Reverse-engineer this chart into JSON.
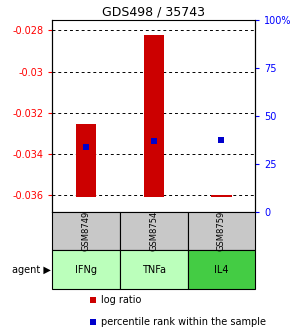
{
  "title": "GDS498 / 35743",
  "samples": [
    "GSM8749",
    "GSM8754",
    "GSM8759"
  ],
  "agents": [
    "IFNg",
    "TNFa",
    "IL4"
  ],
  "log_ratios": [
    -0.03253,
    -0.0282,
    -0.03597
  ],
  "log_ratio_base": -0.03608,
  "percentile_ranks": [
    34.0,
    37.0,
    37.5
  ],
  "ylim_left": [
    -0.0368,
    -0.0275
  ],
  "ylim_right": [
    0,
    100
  ],
  "yticks_left": [
    -0.036,
    -0.034,
    -0.032,
    -0.03,
    -0.028
  ],
  "ytick_labels_left": [
    "-0.036",
    "-0.034",
    "-0.032",
    "-0.03",
    "-0.028"
  ],
  "yticks_right": [
    0,
    25,
    50,
    75,
    100
  ],
  "ytick_labels_right": [
    "0",
    "25",
    "50",
    "75",
    "100%"
  ],
  "bar_color": "#cc0000",
  "dot_color": "#0000cc",
  "sample_bg_color": "#c8c8c8",
  "agent_bg_colors": [
    "#bbffbb",
    "#bbffbb",
    "#44cc44"
  ],
  "x_positions": [
    0.5,
    1.5,
    2.5
  ],
  "bar_width": 0.3,
  "xlim": [
    0,
    3
  ]
}
